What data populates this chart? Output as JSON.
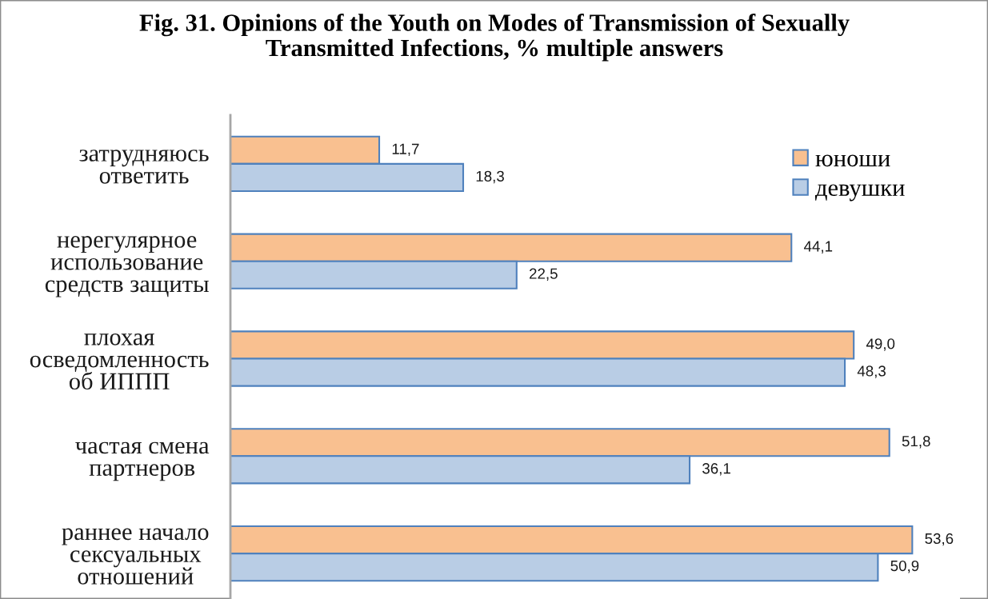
{
  "chart_data": {
    "type": "bar",
    "orientation": "horizontal",
    "title": "Fig. 31. Opinions of the Youth on Modes of Transmission of Sexually\nTransmitted Infections, % multiple answers",
    "categories": [
      "затрудняюсь\nответить",
      "нерегулярное\nиспользование\nсредств защиты",
      "плохая\nосведомленность\nоб ИППП",
      "частая смена\nпартнеров",
      "раннее начало\nсексуальных\nотношений"
    ],
    "series": [
      {
        "name": "юноши",
        "color": "#f9c090",
        "values": [
          11.7,
          44.1,
          49.0,
          51.8,
          53.6
        ],
        "value_labels": [
          "11,7",
          "44,1",
          "49,0",
          "51,8",
          "53,6"
        ]
      },
      {
        "name": "девушки",
        "color": "#b9cde5",
        "values": [
          18.3,
          22.5,
          48.3,
          36.1,
          50.9
        ],
        "value_labels": [
          "18,3",
          "22,5",
          "48,3",
          "36,1",
          "50,9"
        ]
      }
    ],
    "legend": "top right",
    "tick_labels": "y"
  }
}
